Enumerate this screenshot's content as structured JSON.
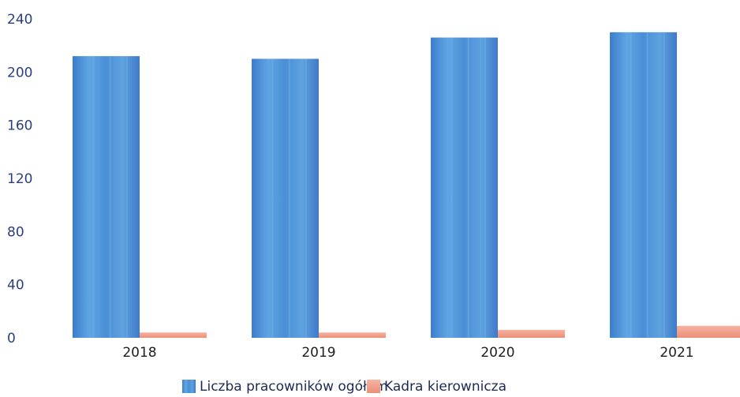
{
  "chart_data": {
    "type": "bar",
    "categories": [
      "2018",
      "2019",
      "2020",
      "2021"
    ],
    "series": [
      {
        "name": "Liczba pracowników ogółem",
        "values": [
          212,
          210,
          226,
          230
        ],
        "color": "#4f8fd2"
      },
      {
        "name": "Kadra kierownicza",
        "values": [
          4,
          4,
          6,
          9
        ],
        "color": "#f2a08c"
      }
    ],
    "yticks": [
      0,
      40,
      80,
      120,
      160,
      200,
      240
    ],
    "ylim": [
      0,
      240
    ],
    "grid": false,
    "legend_position": "bottom"
  }
}
